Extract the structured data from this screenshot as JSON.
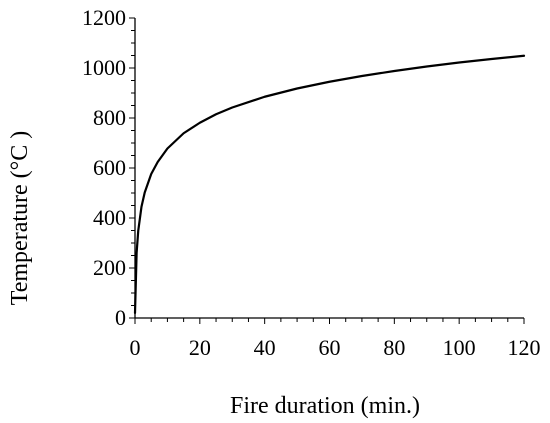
{
  "chart_data": {
    "type": "line",
    "title": "",
    "xlabel": "Fire duration (min.)",
    "ylabel": "Temperature (°C )",
    "xlim": [
      0,
      120
    ],
    "ylim": [
      0,
      1200
    ],
    "x_ticks": [
      0,
      20,
      40,
      60,
      80,
      100,
      120
    ],
    "y_ticks": [
      0,
      200,
      400,
      600,
      800,
      1000,
      1200
    ],
    "x_tick_labels": [
      "0",
      "20",
      "40",
      "60",
      "80",
      "100",
      "120"
    ],
    "y_tick_labels": [
      "0",
      "200",
      "400",
      "600",
      "800",
      "1000",
      "1200"
    ],
    "grid": false,
    "legend": "none",
    "series": [
      {
        "color": "#000000",
        "x": [
          0,
          0.5,
          1,
          2,
          3,
          5,
          7,
          10,
          15,
          20,
          25,
          30,
          40,
          50,
          60,
          70,
          80,
          90,
          100,
          110,
          120
        ],
        "y": [
          20,
          261,
          349,
          445,
          502,
          576,
          624,
          678,
          739,
          781,
          815,
          842,
          885,
          918,
          945,
          968,
          988,
          1006,
          1022,
          1036,
          1049
        ]
      }
    ]
  }
}
